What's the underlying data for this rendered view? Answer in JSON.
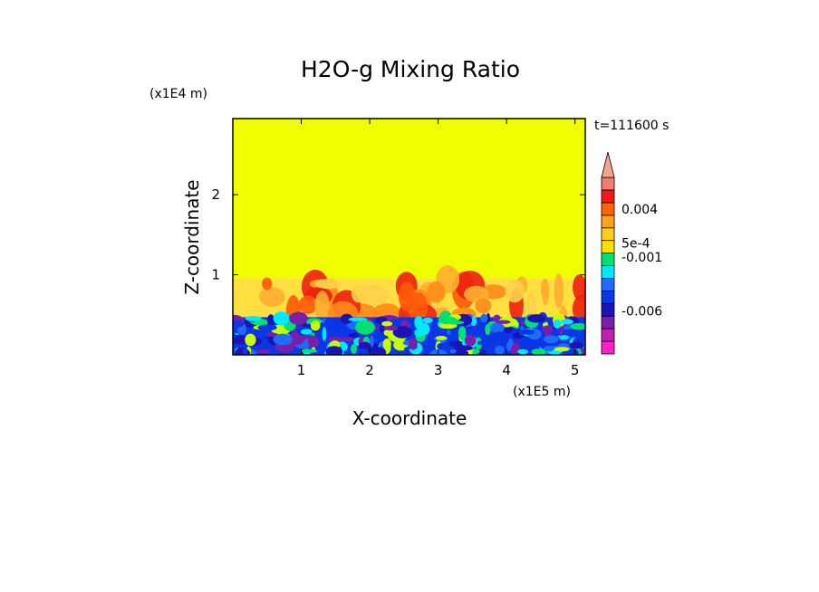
{
  "chart_data": {
    "type": "heatmap",
    "title": "H2O-g Mixing Ratio",
    "xlabel": "X-coordinate",
    "ylabel": "Z-coordinate",
    "x_scale_label": "(x1E5 m)",
    "y_scale_label": "(x1E4 m)",
    "time_label": "t=111600 s",
    "xlim": [
      0,
      5.15
    ],
    "ylim": [
      0,
      2.95
    ],
    "xticks": [
      1,
      2,
      3,
      4,
      5
    ],
    "xtick_labels": [
      "1",
      "2",
      "3",
      "4",
      "5"
    ],
    "yticks": [
      1,
      2
    ],
    "ytick_labels": [
      "1",
      "2"
    ],
    "grid": false,
    "legend_placement": "right",
    "colorbar": {
      "extend": "max",
      "labels": [
        {
          "text": "0.004",
          "value": 0.004
        },
        {
          "text": "5e-4",
          "value": 0.0005
        },
        {
          "text": "-0.001",
          "value": -0.001
        },
        {
          "text": "-0.006",
          "value": -0.006
        }
      ],
      "levels": [
        {
          "color": "#ff1fc8"
        },
        {
          "color": "#c31eb0"
        },
        {
          "color": "#7a1fa8"
        },
        {
          "color": "#1a14b4"
        },
        {
          "color": "#0a36e6"
        },
        {
          "color": "#1e6bff"
        },
        {
          "color": "#00e8ff"
        },
        {
          "color": "#00e070"
        },
        {
          "color": "#ffe000"
        },
        {
          "color": "#ffcc22"
        },
        {
          "color": "#ffa31a"
        },
        {
          "color": "#ff6600"
        },
        {
          "color": "#ee1c14"
        },
        {
          "color": "#f27a74"
        }
      ],
      "triangle_color": "#f3a58d"
    },
    "regions": {
      "upper_value_color": "#f0ff00",
      "transition_layer_top": 0.95,
      "surface_layer_top": 0.47,
      "plume_colors": [
        "#ffd24a",
        "#ffae30",
        "#ff8a1a",
        "#ff5a0a",
        "#ee2010"
      ],
      "surface_colors": [
        "#0a36e6",
        "#1e6bff",
        "#1a14b4",
        "#00e8ff",
        "#7a1fa8",
        "#00e070",
        "#c8ff00"
      ]
    }
  }
}
